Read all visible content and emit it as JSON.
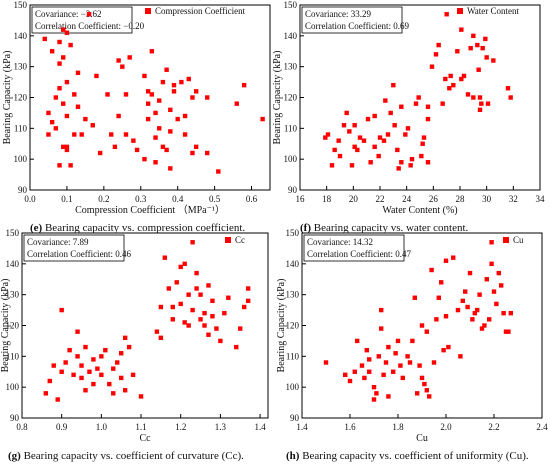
{
  "captions": [
    {
      "id": "e",
      "tag": "(e)",
      "text": " Bearing capacity vs. compression coefficient."
    },
    {
      "id": "f",
      "tag": "(f)",
      "text": " Bearing capacity vs. water content."
    },
    {
      "id": "g",
      "tag": "(g)",
      "text": " Bearing capacity vs. coefficient of curvature (Cc)."
    },
    {
      "id": "h",
      "tag": "(h)",
      "text": " Bearing capacity vs. coefficient of uniformity (Cu)."
    }
  ],
  "colors": {
    "marker": "#ff0000",
    "axis": "#000000",
    "box_border": "#000000"
  },
  "chart_data": [
    {
      "id": "e",
      "type": "scatter",
      "xlabel": "Compression Coefficient （MPa⁻¹）",
      "ylabel": "Bearing Capacity (kPa)",
      "xlim": [
        0.0,
        0.65
      ],
      "ylim": [
        90,
        150
      ],
      "xticks": [
        0.0,
        0.1,
        0.2,
        0.3,
        0.4,
        0.5,
        0.6
      ],
      "xticklabels": [
        "0.0",
        "0.1",
        "0.2",
        "0.3",
        "0.4",
        "0.5",
        "0.6"
      ],
      "yticks": [
        90,
        100,
        110,
        120,
        130,
        140,
        150
      ],
      "legend": "Compression Coefficient",
      "stats": [
        "Covariance: −3.62",
        "Correlation Coefficient: −0.20"
      ],
      "points": [
        [
          0.04,
          139
        ],
        [
          0.05,
          115
        ],
        [
          0.05,
          108
        ],
        [
          0.06,
          112
        ],
        [
          0.06,
          135
        ],
        [
          0.07,
          120
        ],
        [
          0.07,
          110
        ],
        [
          0.08,
          138
        ],
        [
          0.08,
          98
        ],
        [
          0.08,
          123
        ],
        [
          0.08,
          131
        ],
        [
          0.09,
          104
        ],
        [
          0.09,
          142
        ],
        [
          0.09,
          133
        ],
        [
          0.09,
          118
        ],
        [
          0.1,
          141
        ],
        [
          0.1,
          125
        ],
        [
          0.1,
          104
        ],
        [
          0.1,
          114
        ],
        [
          0.1,
          103
        ],
        [
          0.11,
          137
        ],
        [
          0.11,
          98
        ],
        [
          0.12,
          121
        ],
        [
          0.12,
          108
        ],
        [
          0.13,
          128
        ],
        [
          0.13,
          117
        ],
        [
          0.14,
          108
        ],
        [
          0.15,
          113
        ],
        [
          0.16,
          147
        ],
        [
          0.17,
          111
        ],
        [
          0.18,
          127
        ],
        [
          0.19,
          102
        ],
        [
          0.21,
          121
        ],
        [
          0.22,
          108
        ],
        [
          0.23,
          104
        ],
        [
          0.24,
          132
        ],
        [
          0.24,
          114
        ],
        [
          0.25,
          130
        ],
        [
          0.26,
          108
        ],
        [
          0.26,
          121
        ],
        [
          0.27,
          133
        ],
        [
          0.28,
          106
        ],
        [
          0.29,
          103
        ],
        [
          0.31,
          100
        ],
        [
          0.31,
          127
        ],
        [
          0.32,
          122
        ],
        [
          0.32,
          118
        ],
        [
          0.32,
          113
        ],
        [
          0.33,
          121
        ],
        [
          0.33,
          135
        ],
        [
          0.34,
          107
        ],
        [
          0.34,
          99
        ],
        [
          0.34,
          115
        ],
        [
          0.35,
          110
        ],
        [
          0.35,
          119
        ],
        [
          0.36,
          104
        ],
        [
          0.36,
          125
        ],
        [
          0.37,
          103
        ],
        [
          0.37,
          129
        ],
        [
          0.38,
          97
        ],
        [
          0.38,
          109
        ],
        [
          0.38,
          116
        ],
        [
          0.39,
          122
        ],
        [
          0.39,
          124
        ],
        [
          0.4,
          113
        ],
        [
          0.41,
          125
        ],
        [
          0.42,
          108
        ],
        [
          0.42,
          114
        ],
        [
          0.43,
          126
        ],
        [
          0.44,
          120
        ],
        [
          0.44,
          102
        ],
        [
          0.45,
          104
        ],
        [
          0.45,
          122
        ],
        [
          0.48,
          102
        ],
        [
          0.48,
          120
        ],
        [
          0.51,
          96
        ],
        [
          0.56,
          118
        ],
        [
          0.58,
          124
        ],
        [
          0.63,
          113
        ]
      ]
    },
    {
      "id": "f",
      "type": "scatter",
      "xlabel": "Water Content (%)",
      "ylabel": "Bearing Capacity (kPa)",
      "xlim": [
        16,
        34
      ],
      "ylim": [
        90,
        150
      ],
      "xticks": [
        16,
        18,
        20,
        22,
        24,
        26,
        28,
        30,
        32,
        34
      ],
      "xticklabels": [
        "16",
        "18",
        "20",
        "22",
        "24",
        "26",
        "28",
        "30",
        "32",
        "34"
      ],
      "yticks": [
        90,
        100,
        110,
        120,
        130,
        140,
        150
      ],
      "legend": "Water Content",
      "stats": [
        "Covariance: 33.29",
        "Correlation Coefficient: 0.69"
      ],
      "points": [
        [
          17.9,
          107
        ],
        [
          18.1,
          108
        ],
        [
          18.4,
          98
        ],
        [
          18.6,
          103
        ],
        [
          18.9,
          106
        ],
        [
          19.0,
          101
        ],
        [
          19.3,
          111
        ],
        [
          19.5,
          115
        ],
        [
          19.7,
          109
        ],
        [
          19.9,
          98
        ],
        [
          20.1,
          104
        ],
        [
          20.1,
          111
        ],
        [
          20.3,
          103
        ],
        [
          20.5,
          107
        ],
        [
          20.8,
          106
        ],
        [
          21.1,
          113
        ],
        [
          21.3,
          99
        ],
        [
          21.6,
          114
        ],
        [
          21.6,
          104
        ],
        [
          21.9,
          101
        ],
        [
          22.0,
          107
        ],
        [
          22.3,
          106
        ],
        [
          22.4,
          119
        ],
        [
          22.6,
          108
        ],
        [
          22.8,
          115
        ],
        [
          23.0,
          124
        ],
        [
          23.1,
          111
        ],
        [
          23.3,
          103
        ],
        [
          23.4,
          97
        ],
        [
          23.6,
          99
        ],
        [
          23.6,
          117
        ],
        [
          23.9,
          108
        ],
        [
          24.1,
          110
        ],
        [
          24.3,
          98
        ],
        [
          24.4,
          100
        ],
        [
          24.7,
          118
        ],
        [
          24.9,
          120
        ],
        [
          25.1,
          101
        ],
        [
          25.2,
          105
        ],
        [
          25.3,
          107
        ],
        [
          25.6,
          99
        ],
        [
          25.6,
          113
        ],
        [
          25.6,
          117
        ],
        [
          25.9,
          130
        ],
        [
          26.2,
          134
        ],
        [
          26.4,
          137
        ],
        [
          26.7,
          118
        ],
        [
          26.9,
          126
        ],
        [
          27.0,
          147
        ],
        [
          27.2,
          123
        ],
        [
          27.3,
          127
        ],
        [
          27.5,
          124
        ],
        [
          27.8,
          135
        ],
        [
          28.1,
          142
        ],
        [
          28.1,
          126
        ],
        [
          28.3,
          127
        ],
        [
          28.6,
          121
        ],
        [
          28.8,
          136
        ],
        [
          29.0,
          120
        ],
        [
          29.0,
          140
        ],
        [
          29.3,
          137
        ],
        [
          29.4,
          129
        ],
        [
          29.5,
          116
        ],
        [
          29.5,
          120
        ],
        [
          29.6,
          118
        ],
        [
          29.7,
          136
        ],
        [
          29.9,
          139
        ],
        [
          30.0,
          133
        ],
        [
          30.1,
          118
        ],
        [
          30.5,
          132
        ],
        [
          31.6,
          123
        ],
        [
          31.8,
          120
        ]
      ]
    },
    {
      "id": "g",
      "type": "scatter",
      "xlabel": "Cc",
      "ylabel": "Bearing Capacity (kPa)",
      "xlim": [
        0.8,
        1.42
      ],
      "ylim": [
        90,
        150
      ],
      "xticks": [
        0.8,
        0.9,
        1.0,
        1.1,
        1.2,
        1.3,
        1.4
      ],
      "xticklabels": [
        "0.8",
        "0.9",
        "1.0",
        "1.1",
        "1.2",
        "1.3",
        "1.4"
      ],
      "yticks": [
        90,
        100,
        110,
        120,
        130,
        140,
        150
      ],
      "legend": "Cc",
      "stats": [
        "Covariance: 7.89",
        "Correlation Coefficient: 0.46"
      ],
      "points": [
        [
          0.86,
          98
        ],
        [
          0.87,
          102
        ],
        [
          0.88,
          107
        ],
        [
          0.89,
          96
        ],
        [
          0.9,
          125
        ],
        [
          0.9,
          105
        ],
        [
          0.91,
          108
        ],
        [
          0.92,
          112
        ],
        [
          0.93,
          104
        ],
        [
          0.94,
          118
        ],
        [
          0.94,
          110
        ],
        [
          0.95,
          107
        ],
        [
          0.95,
          103
        ],
        [
          0.96,
          113
        ],
        [
          0.96,
          99
        ],
        [
          0.97,
          105
        ],
        [
          0.98,
          109
        ],
        [
          0.98,
          101
        ],
        [
          0.99,
          106
        ],
        [
          1.0,
          110
        ],
        [
          1.0,
          104
        ],
        [
          1.01,
          112
        ],
        [
          1.02,
          101
        ],
        [
          1.03,
          106
        ],
        [
          1.03,
          98
        ],
        [
          1.04,
          108
        ],
        [
          1.05,
          103
        ],
        [
          1.05,
          111
        ],
        [
          1.06,
          99
        ],
        [
          1.06,
          116
        ],
        [
          1.07,
          113
        ],
        [
          1.08,
          104
        ],
        [
          1.1,
          97
        ],
        [
          1.14,
          118
        ],
        [
          1.15,
          126
        ],
        [
          1.15,
          116
        ],
        [
          1.16,
          142
        ],
        [
          1.17,
          132
        ],
        [
          1.18,
          126
        ],
        [
          1.18,
          122
        ],
        [
          1.19,
          134
        ],
        [
          1.2,
          139
        ],
        [
          1.2,
          127
        ],
        [
          1.21,
          121
        ],
        [
          1.21,
          140
        ],
        [
          1.22,
          120
        ],
        [
          1.22,
          130
        ],
        [
          1.23,
          125
        ],
        [
          1.23,
          147
        ],
        [
          1.24,
          132
        ],
        [
          1.24,
          137
        ],
        [
          1.25,
          122
        ],
        [
          1.25,
          130
        ],
        [
          1.26,
          124
        ],
        [
          1.26,
          120
        ],
        [
          1.27,
          117
        ],
        [
          1.27,
          133
        ],
        [
          1.28,
          128
        ],
        [
          1.28,
          123
        ],
        [
          1.29,
          119
        ],
        [
          1.3,
          115
        ],
        [
          1.31,
          124
        ],
        [
          1.32,
          129
        ],
        [
          1.34,
          113
        ],
        [
          1.35,
          119
        ],
        [
          1.36,
          126
        ],
        [
          1.37,
          128
        ],
        [
          1.37,
          132
        ]
      ]
    },
    {
      "id": "h",
      "type": "scatter",
      "xlabel": "Cu",
      "ylabel": "Bearing Capacity (kPa)",
      "xlim": [
        1.4,
        2.4
      ],
      "ylim": [
        90,
        150
      ],
      "xticks": [
        1.4,
        1.6,
        1.8,
        2.0,
        2.2,
        2.4
      ],
      "xticklabels": [
        "1.4",
        "1.6",
        "1.8",
        "2.0",
        "2.2",
        "2.4"
      ],
      "yticks": [
        90,
        100,
        110,
        120,
        130,
        140,
        150
      ],
      "legend": "Cu",
      "stats": [
        "Covariance: 14.32",
        "Correlation Coefficient: 0.47"
      ],
      "points": [
        [
          1.5,
          108
        ],
        [
          1.58,
          104
        ],
        [
          1.6,
          102
        ],
        [
          1.62,
          105
        ],
        [
          1.63,
          115
        ],
        [
          1.65,
          107
        ],
        [
          1.66,
          103
        ],
        [
          1.67,
          112
        ],
        [
          1.68,
          109
        ],
        [
          1.68,
          105
        ],
        [
          1.7,
          100
        ],
        [
          1.7,
          96
        ],
        [
          1.71,
          98
        ],
        [
          1.72,
          110
        ],
        [
          1.73,
          119
        ],
        [
          1.73,
          125
        ],
        [
          1.74,
          104
        ],
        [
          1.75,
          108
        ],
        [
          1.76,
          113
        ],
        [
          1.76,
          97
        ],
        [
          1.78,
          105
        ],
        [
          1.79,
          111
        ],
        [
          1.8,
          115
        ],
        [
          1.81,
          107
        ],
        [
          1.82,
          103
        ],
        [
          1.84,
          110
        ],
        [
          1.85,
          108
        ],
        [
          1.86,
          115
        ],
        [
          1.87,
          129
        ],
        [
          1.88,
          98
        ],
        [
          1.89,
          107
        ],
        [
          1.9,
          120
        ],
        [
          1.9,
          103
        ],
        [
          1.91,
          101
        ],
        [
          1.92,
          99
        ],
        [
          1.92,
          118
        ],
        [
          1.93,
          97
        ],
        [
          1.94,
          138
        ],
        [
          1.95,
          108
        ],
        [
          1.96,
          122
        ],
        [
          1.97,
          129
        ],
        [
          1.98,
          134
        ],
        [
          1.99,
          112
        ],
        [
          2.0,
          141
        ],
        [
          2.0,
          123
        ],
        [
          2.01,
          113
        ],
        [
          2.03,
          142
        ],
        [
          2.05,
          125
        ],
        [
          2.06,
          110
        ],
        [
          2.07,
          128
        ],
        [
          2.08,
          131
        ],
        [
          2.09,
          126
        ],
        [
          2.1,
          137
        ],
        [
          2.11,
          122
        ],
        [
          2.12,
          124
        ],
        [
          2.13,
          125
        ],
        [
          2.14,
          130
        ],
        [
          2.15,
          119
        ],
        [
          2.16,
          120
        ],
        [
          2.17,
          135
        ],
        [
          2.18,
          122
        ],
        [
          2.19,
          140
        ],
        [
          2.19,
          147
        ],
        [
          2.2,
          131
        ],
        [
          2.21,
          127
        ],
        [
          2.22,
          137
        ],
        [
          2.23,
          133
        ],
        [
          2.24,
          124
        ],
        [
          2.25,
          118
        ],
        [
          2.26,
          118
        ],
        [
          2.27,
          124
        ]
      ]
    }
  ]
}
